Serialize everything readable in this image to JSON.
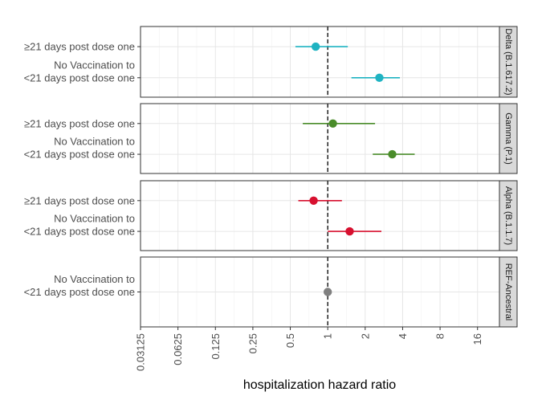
{
  "chart_data": {
    "type": "forest",
    "xlabel": "hospitalization hazard ratio",
    "x_scale": "log2",
    "xlim": [
      0.03125,
      24
    ],
    "x_ticks": [
      0.03125,
      0.0625,
      0.125,
      0.25,
      0.5,
      1,
      2,
      4,
      8,
      16
    ],
    "x_tick_labels": [
      "0.03125",
      "0.0625",
      "0.125",
      "0.25",
      "0.5",
      "1",
      "2",
      "4",
      "8",
      "16"
    ],
    "reference_line": 1,
    "grid": true,
    "panels": [
      {
        "strip": "Delta (B.1.617.2)",
        "color": "#1fb3c2",
        "rows": [
          {
            "label": [
              "≥21 days post dose one"
            ],
            "estimate": 0.8,
            "lower": 0.55,
            "upper": 1.45
          },
          {
            "label": [
              "No Vaccination to",
              "<21 days post dose one"
            ],
            "estimate": 2.6,
            "lower": 1.55,
            "upper": 3.8
          }
        ]
      },
      {
        "strip": "Gamma (P.1)",
        "color": "#4a8c2a",
        "rows": [
          {
            "label": [
              "≥21 days post dose one"
            ],
            "estimate": 1.1,
            "lower": 0.63,
            "upper": 2.4
          },
          {
            "label": [
              "No Vaccination to",
              "<21 days post dose one"
            ],
            "estimate": 3.3,
            "lower": 2.3,
            "upper": 5.0
          }
        ]
      },
      {
        "strip": "Alpha (B.1.1.7)",
        "color": "#d7102f",
        "rows": [
          {
            "label": [
              "≥21 days post dose one"
            ],
            "estimate": 0.77,
            "lower": 0.58,
            "upper": 1.3
          },
          {
            "label": [
              "No Vaccination to",
              "<21 days post dose one"
            ],
            "estimate": 1.5,
            "lower": 1.0,
            "upper": 2.7
          }
        ]
      },
      {
        "strip": "REF-Ancestral",
        "color": "#808080",
        "rows": [
          {
            "label": [
              "No Vaccination to",
              "<21 days post dose one"
            ],
            "estimate": 1.0,
            "lower": 1.0,
            "upper": 1.0
          }
        ]
      }
    ]
  }
}
